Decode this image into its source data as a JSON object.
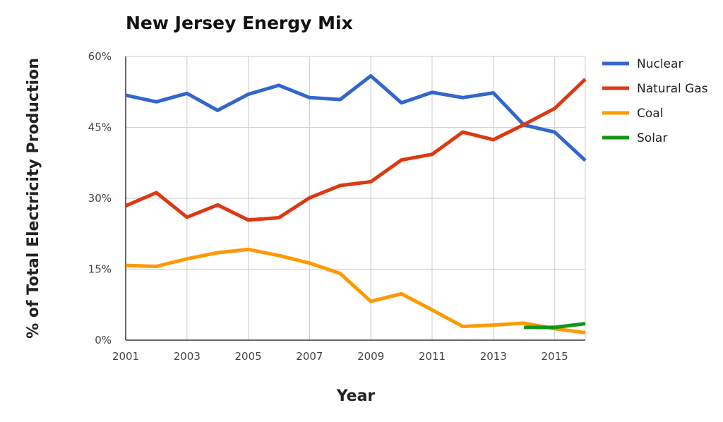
{
  "chart_data": {
    "type": "line",
    "title": "New Jersey Energy Mix",
    "xlabel": "Year",
    "ylabel": "% of Total Electricity Production",
    "x": [
      2001,
      2002,
      2003,
      2004,
      2005,
      2006,
      2007,
      2008,
      2009,
      2010,
      2011,
      2012,
      2013,
      2014,
      2015,
      2016
    ],
    "x_ticks": [
      "2001",
      "2003",
      "2005",
      "2007",
      "2009",
      "2011",
      "2013",
      "2015"
    ],
    "x_tick_values": [
      2001,
      2003,
      2005,
      2007,
      2009,
      2011,
      2013,
      2015
    ],
    "xlim": [
      2001,
      2016
    ],
    "y_ticks": [
      "0%",
      "15%",
      "30%",
      "45%",
      "60%"
    ],
    "y_tick_values": [
      0,
      15,
      30,
      45,
      60
    ],
    "ylim": [
      0,
      60
    ],
    "grid": true,
    "legend_position": "right",
    "series": [
      {
        "name": "Nuclear",
        "color": "#3366cc",
        "x": [
          2001,
          2002,
          2003,
          2004,
          2005,
          2006,
          2007,
          2008,
          2009,
          2010,
          2011,
          2012,
          2013,
          2014,
          2015,
          2016
        ],
        "values": [
          51.8,
          50.4,
          52.2,
          48.6,
          52.0,
          53.9,
          51.3,
          50.9,
          55.9,
          50.2,
          52.4,
          51.3,
          52.3,
          45.5,
          44.0,
          38.0
        ]
      },
      {
        "name": "Natural Gas",
        "color": "#dc3912",
        "x": [
          2001,
          2002,
          2003,
          2004,
          2005,
          2006,
          2007,
          2008,
          2009,
          2010,
          2011,
          2012,
          2013,
          2014,
          2015,
          2016
        ],
        "values": [
          28.4,
          31.2,
          26.0,
          28.6,
          25.4,
          25.9,
          30.1,
          32.7,
          33.5,
          38.1,
          39.3,
          44.0,
          42.4,
          45.6,
          49.0,
          55.2
        ]
      },
      {
        "name": "Coal",
        "color": "#ff9900",
        "x": [
          2001,
          2002,
          2003,
          2004,
          2005,
          2006,
          2007,
          2008,
          2009,
          2010,
          2011,
          2012,
          2013,
          2014,
          2015,
          2016
        ],
        "values": [
          15.8,
          15.6,
          17.2,
          18.5,
          19.2,
          17.9,
          16.3,
          14.1,
          8.2,
          9.8,
          6.4,
          2.9,
          3.2,
          3.6,
          2.4,
          1.6
        ]
      },
      {
        "name": "Solar",
        "color": "#109618",
        "x": [
          2014,
          2015,
          2016
        ],
        "values": [
          2.7,
          2.7,
          3.5
        ]
      }
    ]
  }
}
